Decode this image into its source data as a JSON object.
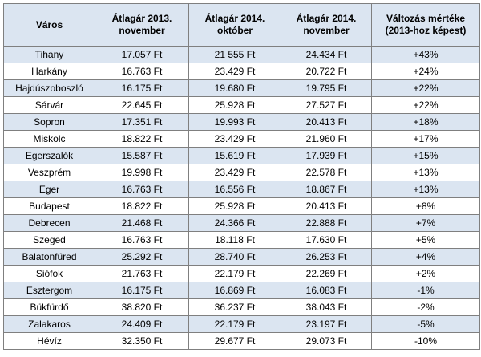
{
  "table": {
    "headers": [
      "Város",
      "Átlagár 2013.\nnovember",
      "Átlagár 2014.\noktóber",
      "Átlagár 2014.\nnovember",
      "Változás mértéke\n(2013-hoz képest)"
    ],
    "rows": [
      [
        "Tihany",
        "17.057 Ft",
        "21 555 Ft",
        "24.434 Ft",
        "+43%"
      ],
      [
        "Harkány",
        "16.763 Ft",
        "23.429 Ft",
        "20.722 Ft",
        "+24%"
      ],
      [
        "Hajdúszoboszló",
        "16.175 Ft",
        "19.680 Ft",
        "19.795 Ft",
        "+22%"
      ],
      [
        "Sárvár",
        "22.645 Ft",
        "25.928 Ft",
        "27.527 Ft",
        "+22%"
      ],
      [
        "Sopron",
        "17.351 Ft",
        "19.993 Ft",
        "20.413 Ft",
        "+18%"
      ],
      [
        "Miskolc",
        "18.822 Ft",
        "23.429 Ft",
        "21.960 Ft",
        "+17%"
      ],
      [
        "Egerszalók",
        "15.587 Ft",
        "15.619 Ft",
        "17.939 Ft",
        "+15%"
      ],
      [
        "Veszprém",
        "19.998 Ft",
        "23.429 Ft",
        "22.578 Ft",
        "+13%"
      ],
      [
        "Eger",
        "16.763 Ft",
        "16.556 Ft",
        "18.867 Ft",
        "+13%"
      ],
      [
        "Budapest",
        "18.822 Ft",
        "25.928 Ft",
        "20.413 Ft",
        "+8%"
      ],
      [
        "Debrecen",
        "21.468 Ft",
        "24.366 Ft",
        "22.888 Ft",
        "+7%"
      ],
      [
        "Szeged",
        "16.763 Ft",
        "18.118 Ft",
        "17.630 Ft",
        "+5%"
      ],
      [
        "Balatonfüred",
        "25.292 Ft",
        "28.740 Ft",
        "26.253 Ft",
        "+4%"
      ],
      [
        "Siófok",
        "21.763 Ft",
        "22.179 Ft",
        "22.269 Ft",
        "+2%"
      ],
      [
        "Esztergom",
        "16.175 Ft",
        "16.869 Ft",
        "16.083 Ft",
        "-1%"
      ],
      [
        "Bükfürdő",
        "38.820 Ft",
        "36.237 Ft",
        "38.043 Ft",
        "-2%"
      ],
      [
        "Zalakaros",
        "24.409 Ft",
        "22.179 Ft",
        "23.197 Ft",
        "-5%"
      ],
      [
        "Hévíz",
        "32.350 Ft",
        "29.677 Ft",
        "29.073 Ft",
        "-10%"
      ]
    ]
  },
  "colors": {
    "header_fill": "#dbe5f1",
    "band_fill": "#dbe5f1",
    "plain_fill": "#ffffff",
    "border": "#7f7f7f",
    "text": "#000000"
  }
}
